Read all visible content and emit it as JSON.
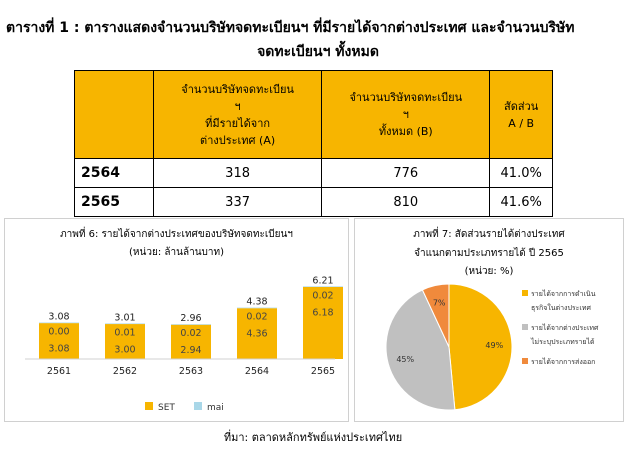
{
  "title_line1": "ตารางที่ 1 : ตารางแสดงจำนวนบริษัทจดทะเบียนฯ ที่มีรายได้จากต่างประเทศ และจำนวนบริษัท",
  "title_line2": "จดทะเบียนฯ ทั้งหมด",
  "table": {
    "headers": [
      "จำนวนบริษัทจดทะเบียนฯ ที่มีรายได้จากต่างประเทศ (A)",
      "จำนวนบริษัทจดทะเบียนฯ ทั้งหมด (B)",
      "สัดส่วน A / B"
    ],
    "header_lines": [
      [
        "จำนวนบริษัทจดทะเบียน",
        "ฯ",
        "ที่มีรายได้จาก",
        "ต่างประเทศ (A)"
      ],
      [
        "จำนวนบริษัทจดทะเบียน",
        "ฯ",
        "ทั้งหมด (B)"
      ],
      [
        "สัดส่วน",
        "A / B"
      ]
    ],
    "rows": [
      {
        "year": "2564",
        "a": "318",
        "b": "776",
        "ratio": "41.0%"
      },
      {
        "year": "2565",
        "a": "337",
        "b": "810",
        "ratio": "41.6%"
      }
    ]
  },
  "chart_data": [
    {
      "type": "bar",
      "title": "ภาพที่ 6: รายได้จากต่างประเทศของบริษัทจดทะเบียนฯ",
      "subtitle": "(หน่วย: ล้านล้านบาท)",
      "categories": [
        "2561",
        "2562",
        "2563",
        "2564",
        "2565"
      ],
      "series": [
        {
          "name": "SET",
          "values": [
            3.08,
            3.0,
            2.94,
            4.36,
            6.18
          ],
          "labels": [
            "3.08",
            "3.00",
            "2.94",
            "4.36",
            "6.18"
          ],
          "color": "#f7b500"
        },
        {
          "name": "mai",
          "values": [
            0.0,
            0.01,
            0.02,
            0.02,
            0.02
          ],
          "labels": [
            "0.00",
            "0.01",
            "0.02",
            "0.02",
            "0.02"
          ],
          "color": "#a9d7e8"
        }
      ],
      "totals": [
        "3.08",
        "3.01",
        "2.96",
        "4.38",
        "6.21"
      ],
      "ylim": [
        0,
        6.5
      ],
      "legend": "bottom"
    },
    {
      "type": "pie",
      "title": "ภาพที่ 7: สัดส่วนรายได้ต่างประเทศ",
      "subtitle": "จำแนกตามประเภทรายได้ ปี 2565",
      "unit": "(หน่วย: %)",
      "slices": [
        {
          "label": "รายได้จากการดำเนินธุรกิจในต่างประเทศ",
          "label_lines": [
            "รายได้จากการดำเนิน",
            "ธุรกิจในต่างประเทศ"
          ],
          "value": 49,
          "text": "49%",
          "color": "#f7b500"
        },
        {
          "label": "รายได้จากต่างประเทศไม่ระบุประเภทรายได้",
          "label_lines": [
            "รายได้จากต่างประเทศ",
            "ไม่ระบุประเภทรายได้"
          ],
          "value": 45,
          "text": "45%",
          "color": "#c0c0c0"
        },
        {
          "label": "รายได้จากการส่งออก",
          "label_lines": [
            "รายได้จากการส่งออก"
          ],
          "value": 7,
          "text": "7%",
          "color": "#f08a3c"
        }
      ],
      "legend": "right"
    }
  ],
  "source": "ที่มา: ตลาดหลักทรัพย์แห่งประเทศไทย"
}
